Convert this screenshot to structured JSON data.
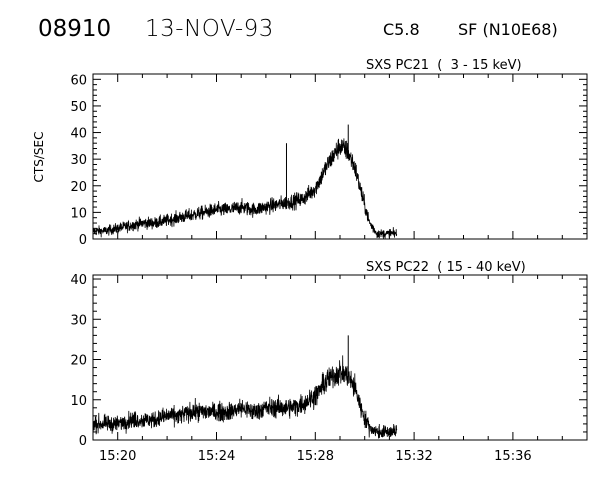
{
  "header": {
    "event_id": "08910",
    "date": "13-NOV-93",
    "flare_class": "C5.8",
    "location": "SF (N10E68)"
  },
  "chart_data": [
    {
      "type": "line",
      "title": "SXS PC21  (  3 - 15 keV)",
      "ylabel": "CTS/SEC",
      "xlabel": "",
      "ylim": [
        0,
        62
      ],
      "yticks": [
        0,
        10,
        20,
        30,
        40,
        50,
        60
      ],
      "xlim": [
        "15:19",
        "15:39"
      ],
      "xticks": [
        "15:20",
        "15:24",
        "15:28",
        "15:32",
        "15:36"
      ],
      "grid": false,
      "x_minutes_of_day": [
        919.0,
        919.5,
        920.0,
        920.5,
        921.0,
        921.5,
        922.0,
        922.5,
        923.0,
        923.5,
        924.0,
        924.5,
        925.0,
        925.5,
        926.0,
        926.5,
        927.0,
        927.5,
        928.0,
        928.5,
        929.0,
        929.3,
        929.6,
        929.9,
        930.2,
        930.5,
        930.8,
        931.3
      ],
      "series": [
        {
          "values": [
            3,
            3,
            4,
            5,
            6,
            6,
            7,
            8,
            9,
            10,
            11,
            11,
            12,
            11,
            12,
            13,
            14,
            15,
            19,
            28,
            35,
            33,
            27,
            16,
            6,
            2,
            2,
            2
          ]
        }
      ],
      "annotations_peaks": [
        {
          "x": "15:26:50",
          "y": 36
        },
        {
          "x": "15:29:20",
          "y": 43
        }
      ]
    },
    {
      "type": "line",
      "title": "SXS PC22  ( 15 - 40 keV)",
      "ylabel": "",
      "xlabel": "",
      "ylim": [
        0,
        41
      ],
      "yticks": [
        0,
        10,
        20,
        30,
        40
      ],
      "xlim": [
        "15:19",
        "15:39"
      ],
      "xticks": [
        "15:20",
        "15:24",
        "15:28",
        "15:32",
        "15:36"
      ],
      "grid": false,
      "x_minutes_of_day": [
        919.0,
        919.5,
        920.0,
        920.5,
        921.0,
        921.5,
        922.0,
        922.5,
        923.0,
        923.5,
        924.0,
        924.5,
        925.0,
        925.5,
        926.0,
        926.5,
        927.0,
        927.5,
        928.0,
        928.5,
        929.0,
        929.3,
        929.6,
        929.9,
        930.2,
        930.5,
        930.8,
        931.3
      ],
      "series": [
        {
          "values": [
            4,
            4,
            4,
            5,
            5,
            5,
            6,
            6,
            7,
            7,
            7,
            7,
            8,
            7,
            8,
            8,
            8,
            9,
            11,
            15,
            17,
            16,
            13,
            7,
            3,
            2,
            2,
            2
          ]
        }
      ],
      "annotations_peaks": [
        {
          "x": "15:29:20",
          "y": 26
        }
      ]
    }
  ]
}
